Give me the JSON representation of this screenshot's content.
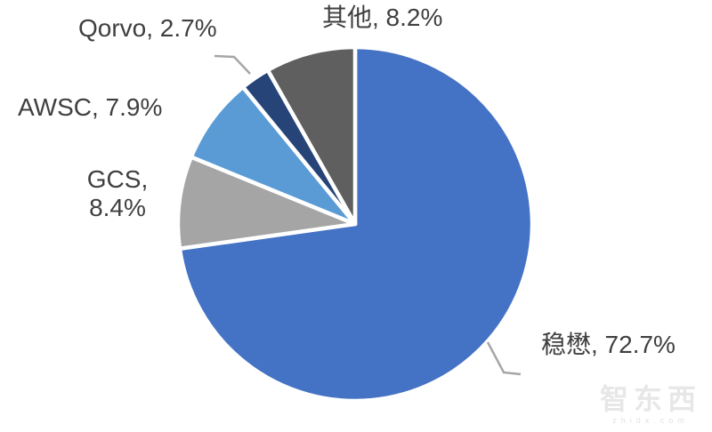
{
  "chart_data": {
    "type": "pie",
    "title": "",
    "unit": "%",
    "start_angle_deg": 0,
    "direction": "clockwise",
    "legend": "none",
    "labels_outside": true,
    "slice_gap_stroke": "#FFFFFF",
    "slices": [
      {
        "name": "win",
        "label": "稳懋",
        "value": 72.7,
        "display": "稳懋, 72.7%",
        "color": "#4472C4"
      },
      {
        "name": "gcs",
        "label": "GCS",
        "value": 8.4,
        "display": "GCS, 8.4%",
        "color": "#A5A5A5"
      },
      {
        "name": "awsc",
        "label": "AWSC",
        "value": 7.9,
        "display": "AWSC, 7.9%",
        "color": "#5B9BD5"
      },
      {
        "name": "qorvo",
        "label": "Qorvo",
        "value": 2.7,
        "display": "Qorvo, 2.7%",
        "color": "#264478"
      },
      {
        "name": "others",
        "label": "其他",
        "value": 8.2,
        "display": "其他, 8.2%",
        "color": "#5F5F5F"
      }
    ]
  },
  "labels": {
    "qorvo": "Qorvo, 2.7%",
    "others": "其他, 8.2%",
    "awsc": "AWSC, 7.9%",
    "gcs_line1": "GCS,",
    "gcs_line2": "8.4%",
    "win": "稳懋, 72.7%"
  },
  "watermark": {
    "logo_text": "智东西",
    "domain": "zhidx.com"
  },
  "colors": {
    "label_text": "#3F3F3F",
    "leader_line": "#A6A6A6",
    "background": "#FFFFFF"
  }
}
